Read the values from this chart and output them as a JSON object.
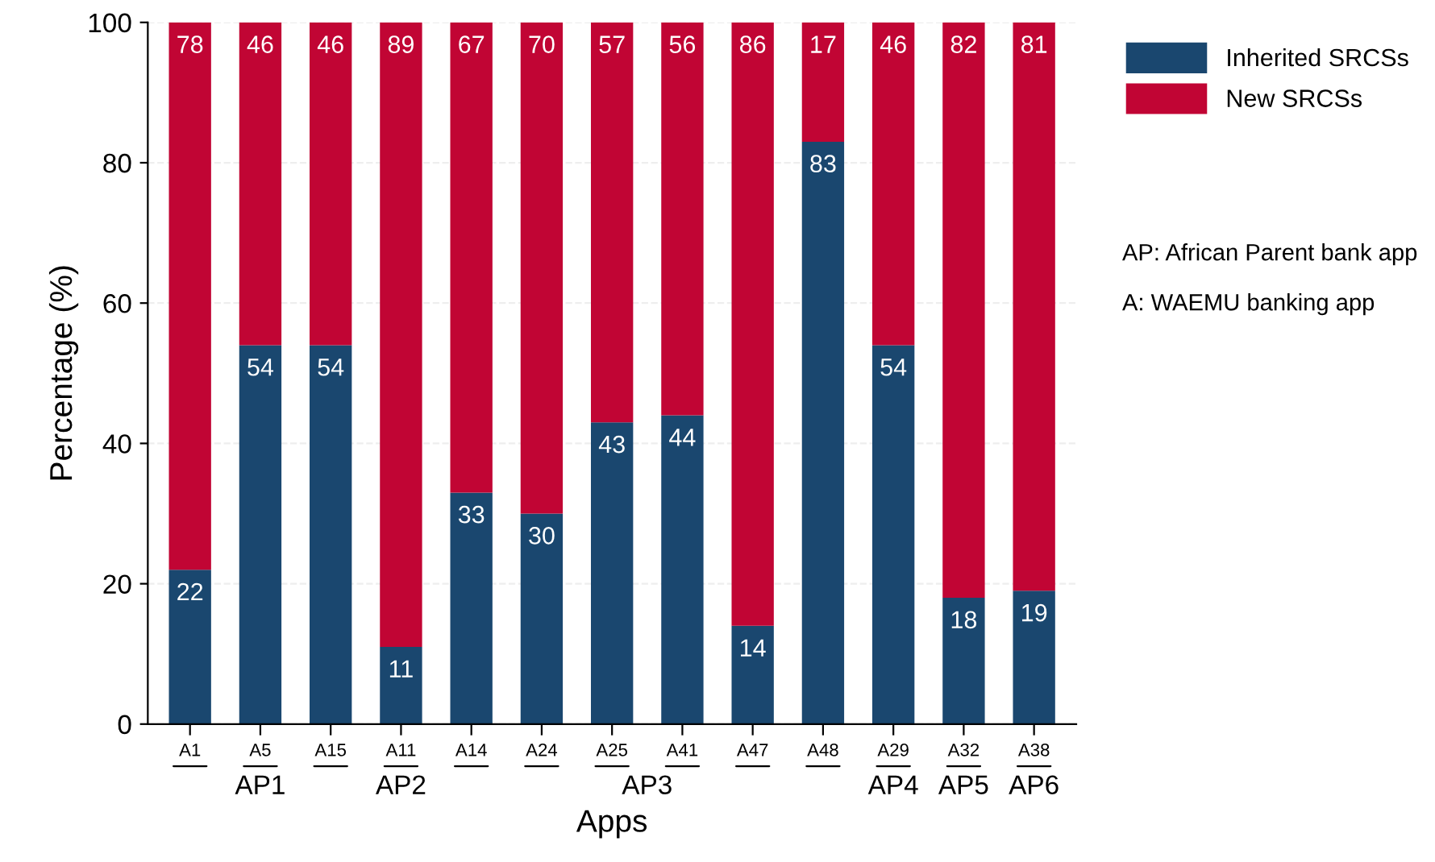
{
  "chart_data": {
    "type": "bar",
    "stacked": true,
    "xlabel": "Apps",
    "ylabel": "Percentage (%)",
    "categories": [
      "A1",
      "A5",
      "A15",
      "A11",
      "A14",
      "A24",
      "A25",
      "A41",
      "A47",
      "A48",
      "A29",
      "A32",
      "A38"
    ],
    "series": [
      {
        "name": "Inherited SRCSs",
        "color": "#1a476f",
        "values": [
          22,
          54,
          54,
          11,
          33,
          30,
          43,
          44,
          14,
          83,
          54,
          18,
          19
        ]
      },
      {
        "name": "New SRCSs",
        "color": "#c10534",
        "values": [
          78,
          46,
          46,
          89,
          67,
          70,
          57,
          56,
          86,
          17,
          46,
          82,
          81
        ]
      }
    ],
    "ylim": [
      0,
      100
    ],
    "yticks": [
      0,
      20,
      40,
      60,
      80,
      100
    ],
    "grid": "y",
    "legend": "top right",
    "data_labels": true,
    "annotations": [
      "AP1",
      "AP2",
      "AP3",
      "AP4",
      "AP5",
      "AP6",
      "AP: African Parent bank app",
      "A: WAEMU banking app"
    ]
  }
}
